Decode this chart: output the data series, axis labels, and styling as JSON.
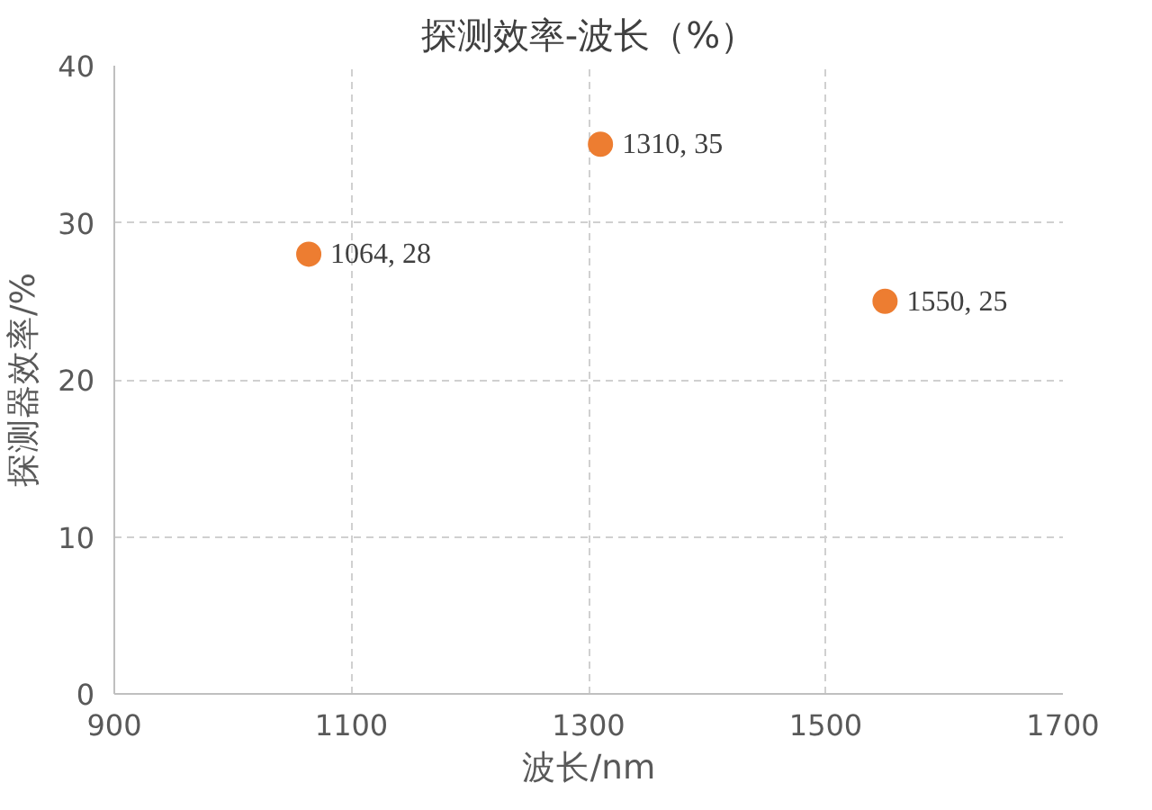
{
  "chart_data": {
    "type": "scatter",
    "title": "探测效率-波长（%）",
    "xlabel": "波长/nm",
    "ylabel": "探测器效率/%",
    "x": [
      1064,
      1310,
      1550
    ],
    "values": [
      28,
      35,
      25
    ],
    "value_labels": [
      "1064, 28",
      "1310, 35",
      "1550, 25"
    ],
    "color": "#ed7d31",
    "marker": "circle",
    "xlim": [
      900,
      1700
    ],
    "xticks": [
      900,
      1100,
      1300,
      1500,
      1700
    ],
    "ylim": [
      0,
      40
    ],
    "yticks": [
      0,
      10,
      20,
      30,
      40
    ],
    "grid": true
  }
}
